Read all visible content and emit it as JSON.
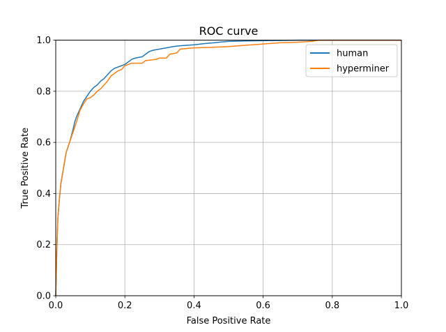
{
  "chart_data": {
    "type": "line",
    "title": "ROC curve",
    "xlabel": "False Positive Rate",
    "ylabel": "True Positive Rate",
    "xlim": [
      0,
      1
    ],
    "ylim": [
      0,
      1
    ],
    "xticks": [
      "0.0",
      "0.2",
      "0.4",
      "0.6",
      "0.8",
      "1.0"
    ],
    "yticks": [
      "0.0",
      "0.2",
      "0.4",
      "0.6",
      "0.8",
      "1.0"
    ],
    "grid": true,
    "legend_position": "top-right",
    "series": [
      {
        "name": "human",
        "color": "#1f77b4",
        "x": [
          0.0,
          0.003,
          0.006,
          0.01,
          0.015,
          0.02,
          0.025,
          0.03,
          0.04,
          0.05,
          0.055,
          0.06,
          0.07,
          0.08,
          0.09,
          0.1,
          0.11,
          0.12,
          0.13,
          0.14,
          0.15,
          0.16,
          0.17,
          0.18,
          0.19,
          0.2,
          0.21,
          0.22,
          0.23,
          0.25,
          0.26,
          0.27,
          0.28,
          0.3,
          0.32,
          0.34,
          0.36,
          0.38,
          0.4,
          0.42,
          0.44,
          0.46,
          0.48,
          0.5,
          0.55,
          0.6,
          0.65,
          0.7,
          0.75,
          0.78,
          0.8,
          1.0
        ],
        "y": [
          0.0,
          0.17,
          0.3,
          0.37,
          0.44,
          0.48,
          0.52,
          0.56,
          0.6,
          0.65,
          0.68,
          0.7,
          0.73,
          0.76,
          0.78,
          0.8,
          0.815,
          0.825,
          0.84,
          0.85,
          0.865,
          0.88,
          0.89,
          0.895,
          0.9,
          0.905,
          0.915,
          0.925,
          0.93,
          0.935,
          0.945,
          0.955,
          0.96,
          0.965,
          0.97,
          0.975,
          0.978,
          0.98,
          0.982,
          0.985,
          0.988,
          0.99,
          0.993,
          0.995,
          0.997,
          0.998,
          0.999,
          1.0,
          1.0,
          1.0,
          1.0,
          1.0
        ]
      },
      {
        "name": "hyperminer",
        "color": "#ff7f0e",
        "x": [
          0.0,
          0.003,
          0.006,
          0.01,
          0.015,
          0.02,
          0.025,
          0.03,
          0.04,
          0.05,
          0.06,
          0.07,
          0.08,
          0.09,
          0.1,
          0.11,
          0.12,
          0.13,
          0.14,
          0.15,
          0.16,
          0.17,
          0.18,
          0.19,
          0.2,
          0.22,
          0.25,
          0.26,
          0.29,
          0.3,
          0.32,
          0.33,
          0.35,
          0.36,
          0.4,
          0.45,
          0.5,
          0.55,
          0.6,
          0.65,
          0.7,
          0.74,
          0.76,
          0.8,
          1.0
        ],
        "y": [
          0.0,
          0.17,
          0.3,
          0.37,
          0.44,
          0.48,
          0.52,
          0.56,
          0.6,
          0.64,
          0.68,
          0.725,
          0.75,
          0.77,
          0.775,
          0.785,
          0.8,
          0.81,
          0.825,
          0.84,
          0.86,
          0.87,
          0.88,
          0.885,
          0.9,
          0.91,
          0.91,
          0.92,
          0.925,
          0.93,
          0.93,
          0.945,
          0.95,
          0.965,
          0.97,
          0.972,
          0.975,
          0.98,
          0.985,
          0.99,
          0.992,
          0.995,
          1.0,
          1.0,
          1.0
        ]
      }
    ]
  }
}
